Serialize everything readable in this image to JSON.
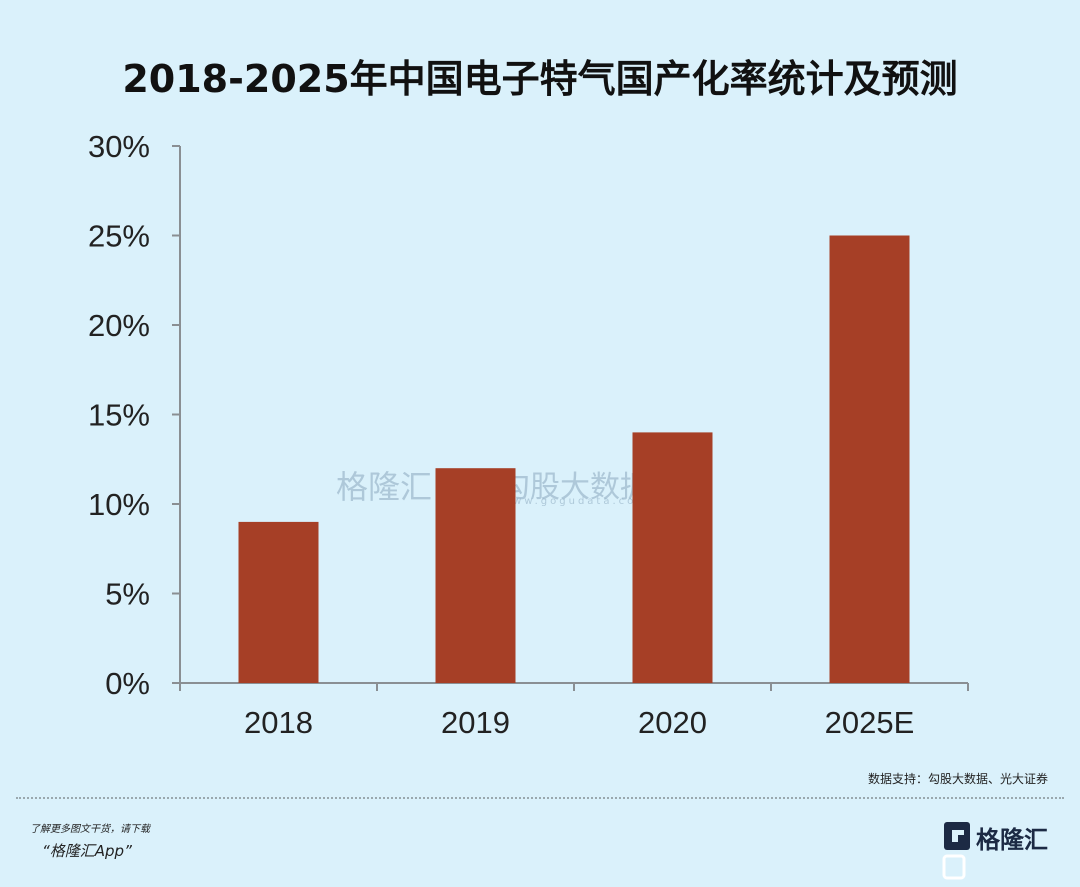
{
  "chart_data": {
    "type": "bar",
    "title": "2018-2025年中国电子特气国产化率统计及预测",
    "categories": [
      "2018",
      "2019",
      "2020",
      "2025E"
    ],
    "values": [
      9,
      12,
      14,
      25
    ],
    "value_unit": "%",
    "ylim": [
      0,
      30
    ],
    "yticks": [
      "0%",
      "5%",
      "10%",
      "15%",
      "20%",
      "25%",
      "30%"
    ],
    "xlabel": "",
    "ylabel": "",
    "grid": false,
    "bar_color": "#a63f26"
  },
  "source": "数据支持：勾股大数据、光大证券",
  "watermark": {
    "brand": "格隆汇",
    "brand2": "勾股大数据",
    "url": "www.gogudata.com"
  },
  "footer": {
    "promo_line1": "了解更多图文干货，请下载",
    "promo_line2": "“格隆汇App”",
    "logo_text": "格隆汇"
  }
}
